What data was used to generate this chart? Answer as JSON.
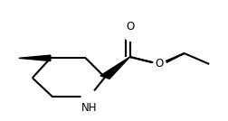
{
  "bg_color": "#ffffff",
  "bond_color": "#000000",
  "bond_lw": 1.5,
  "text_color": "#000000",
  "font_size": 8.5,
  "figsize": [
    2.52,
    1.34
  ],
  "dpi": 100,
  "xlim": [
    0,
    1
  ],
  "ylim": [
    0,
    1
  ]
}
